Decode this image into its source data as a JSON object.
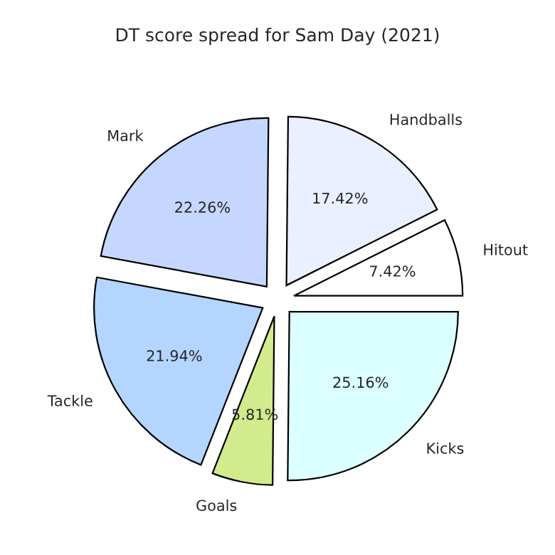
{
  "chart_data": {
    "type": "pie",
    "title": "DT score spread for Sam Day (2021)",
    "categories": [
      "Hitout",
      "Handballs",
      "Mark",
      "Tackle",
      "Goals",
      "Kicks"
    ],
    "values": [
      7.42,
      17.42,
      22.26,
      21.94,
      5.81,
      25.16
    ],
    "value_labels": [
      "7.42%",
      "17.42%",
      "22.26%",
      "21.94%",
      "5.81%",
      "25.16%"
    ],
    "colors": [
      "#ffffff",
      "#eaf0ff",
      "#c6d7ff",
      "#b3d5ff",
      "#d2eb8c",
      "#dcffff"
    ],
    "legend": false
  }
}
